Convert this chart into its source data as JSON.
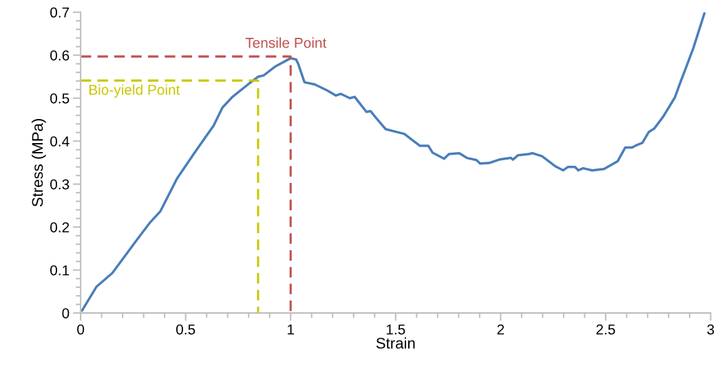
{
  "chart_data": {
    "type": "line",
    "xlabel": "Strain",
    "ylabel": "Stress (MPa)",
    "xlim": [
      0,
      3
    ],
    "ylim": [
      0,
      0.7
    ],
    "xticks": [
      0,
      0.5,
      1,
      1.5,
      2,
      2.5,
      3
    ],
    "yticks": [
      0,
      0.1,
      0.2,
      0.3,
      0.4,
      0.5,
      0.6,
      0.7
    ],
    "grid": false,
    "legend": false,
    "series": [
      {
        "color": "#4a7ebb",
        "line_style": "solid",
        "x": [
          0.007,
          0.075,
          0.151,
          0.272,
          0.331,
          0.38,
          0.459,
          0.541,
          0.577,
          0.633,
          0.675,
          0.721,
          0.797,
          0.846,
          0.872,
          0.928,
          1.0,
          1.026,
          1.036,
          1.066,
          1.115,
          1.174,
          1.216,
          1.239,
          1.282,
          1.305,
          1.361,
          1.38,
          1.41,
          1.452,
          1.508,
          1.541,
          1.616,
          1.656,
          1.676,
          1.731,
          1.754,
          1.803,
          1.839,
          1.885,
          1.902,
          1.944,
          1.993,
          2.049,
          2.059,
          2.082,
          2.134,
          2.151,
          2.197,
          2.262,
          2.298,
          2.321,
          2.354,
          2.37,
          2.393,
          2.436,
          2.492,
          2.557,
          2.593,
          2.626,
          2.649,
          2.675,
          2.705,
          2.731,
          2.774,
          2.83,
          2.856,
          2.885,
          2.918,
          2.97
        ],
        "values": [
          0.006,
          0.061,
          0.093,
          0.173,
          0.211,
          0.237,
          0.313,
          0.372,
          0.397,
          0.436,
          0.478,
          0.502,
          0.532,
          0.55,
          0.553,
          0.574,
          0.593,
          0.59,
          0.58,
          0.537,
          0.532,
          0.518,
          0.506,
          0.51,
          0.5,
          0.503,
          0.468,
          0.47,
          0.452,
          0.428,
          0.421,
          0.417,
          0.389,
          0.389,
          0.373,
          0.359,
          0.37,
          0.372,
          0.361,
          0.356,
          0.348,
          0.349,
          0.357,
          0.361,
          0.357,
          0.367,
          0.37,
          0.372,
          0.365,
          0.341,
          0.332,
          0.34,
          0.34,
          0.332,
          0.337,
          0.332,
          0.335,
          0.353,
          0.385,
          0.385,
          0.391,
          0.396,
          0.421,
          0.429,
          0.457,
          0.502,
          0.537,
          0.574,
          0.617,
          0.697
        ]
      },
      {
        "color": "#c0504d",
        "line_style": "dashed",
        "x": [
          0,
          1,
          1
        ],
        "values": [
          0.597,
          0.597,
          0
        ]
      },
      {
        "color": "#c8c800",
        "line_style": "dashed",
        "x": [
          0,
          0.845,
          0.845
        ],
        "values": [
          0.541,
          0.541,
          0
        ]
      }
    ],
    "annotations": [
      "Tensile Point",
      "Bio-yield Point"
    ]
  }
}
